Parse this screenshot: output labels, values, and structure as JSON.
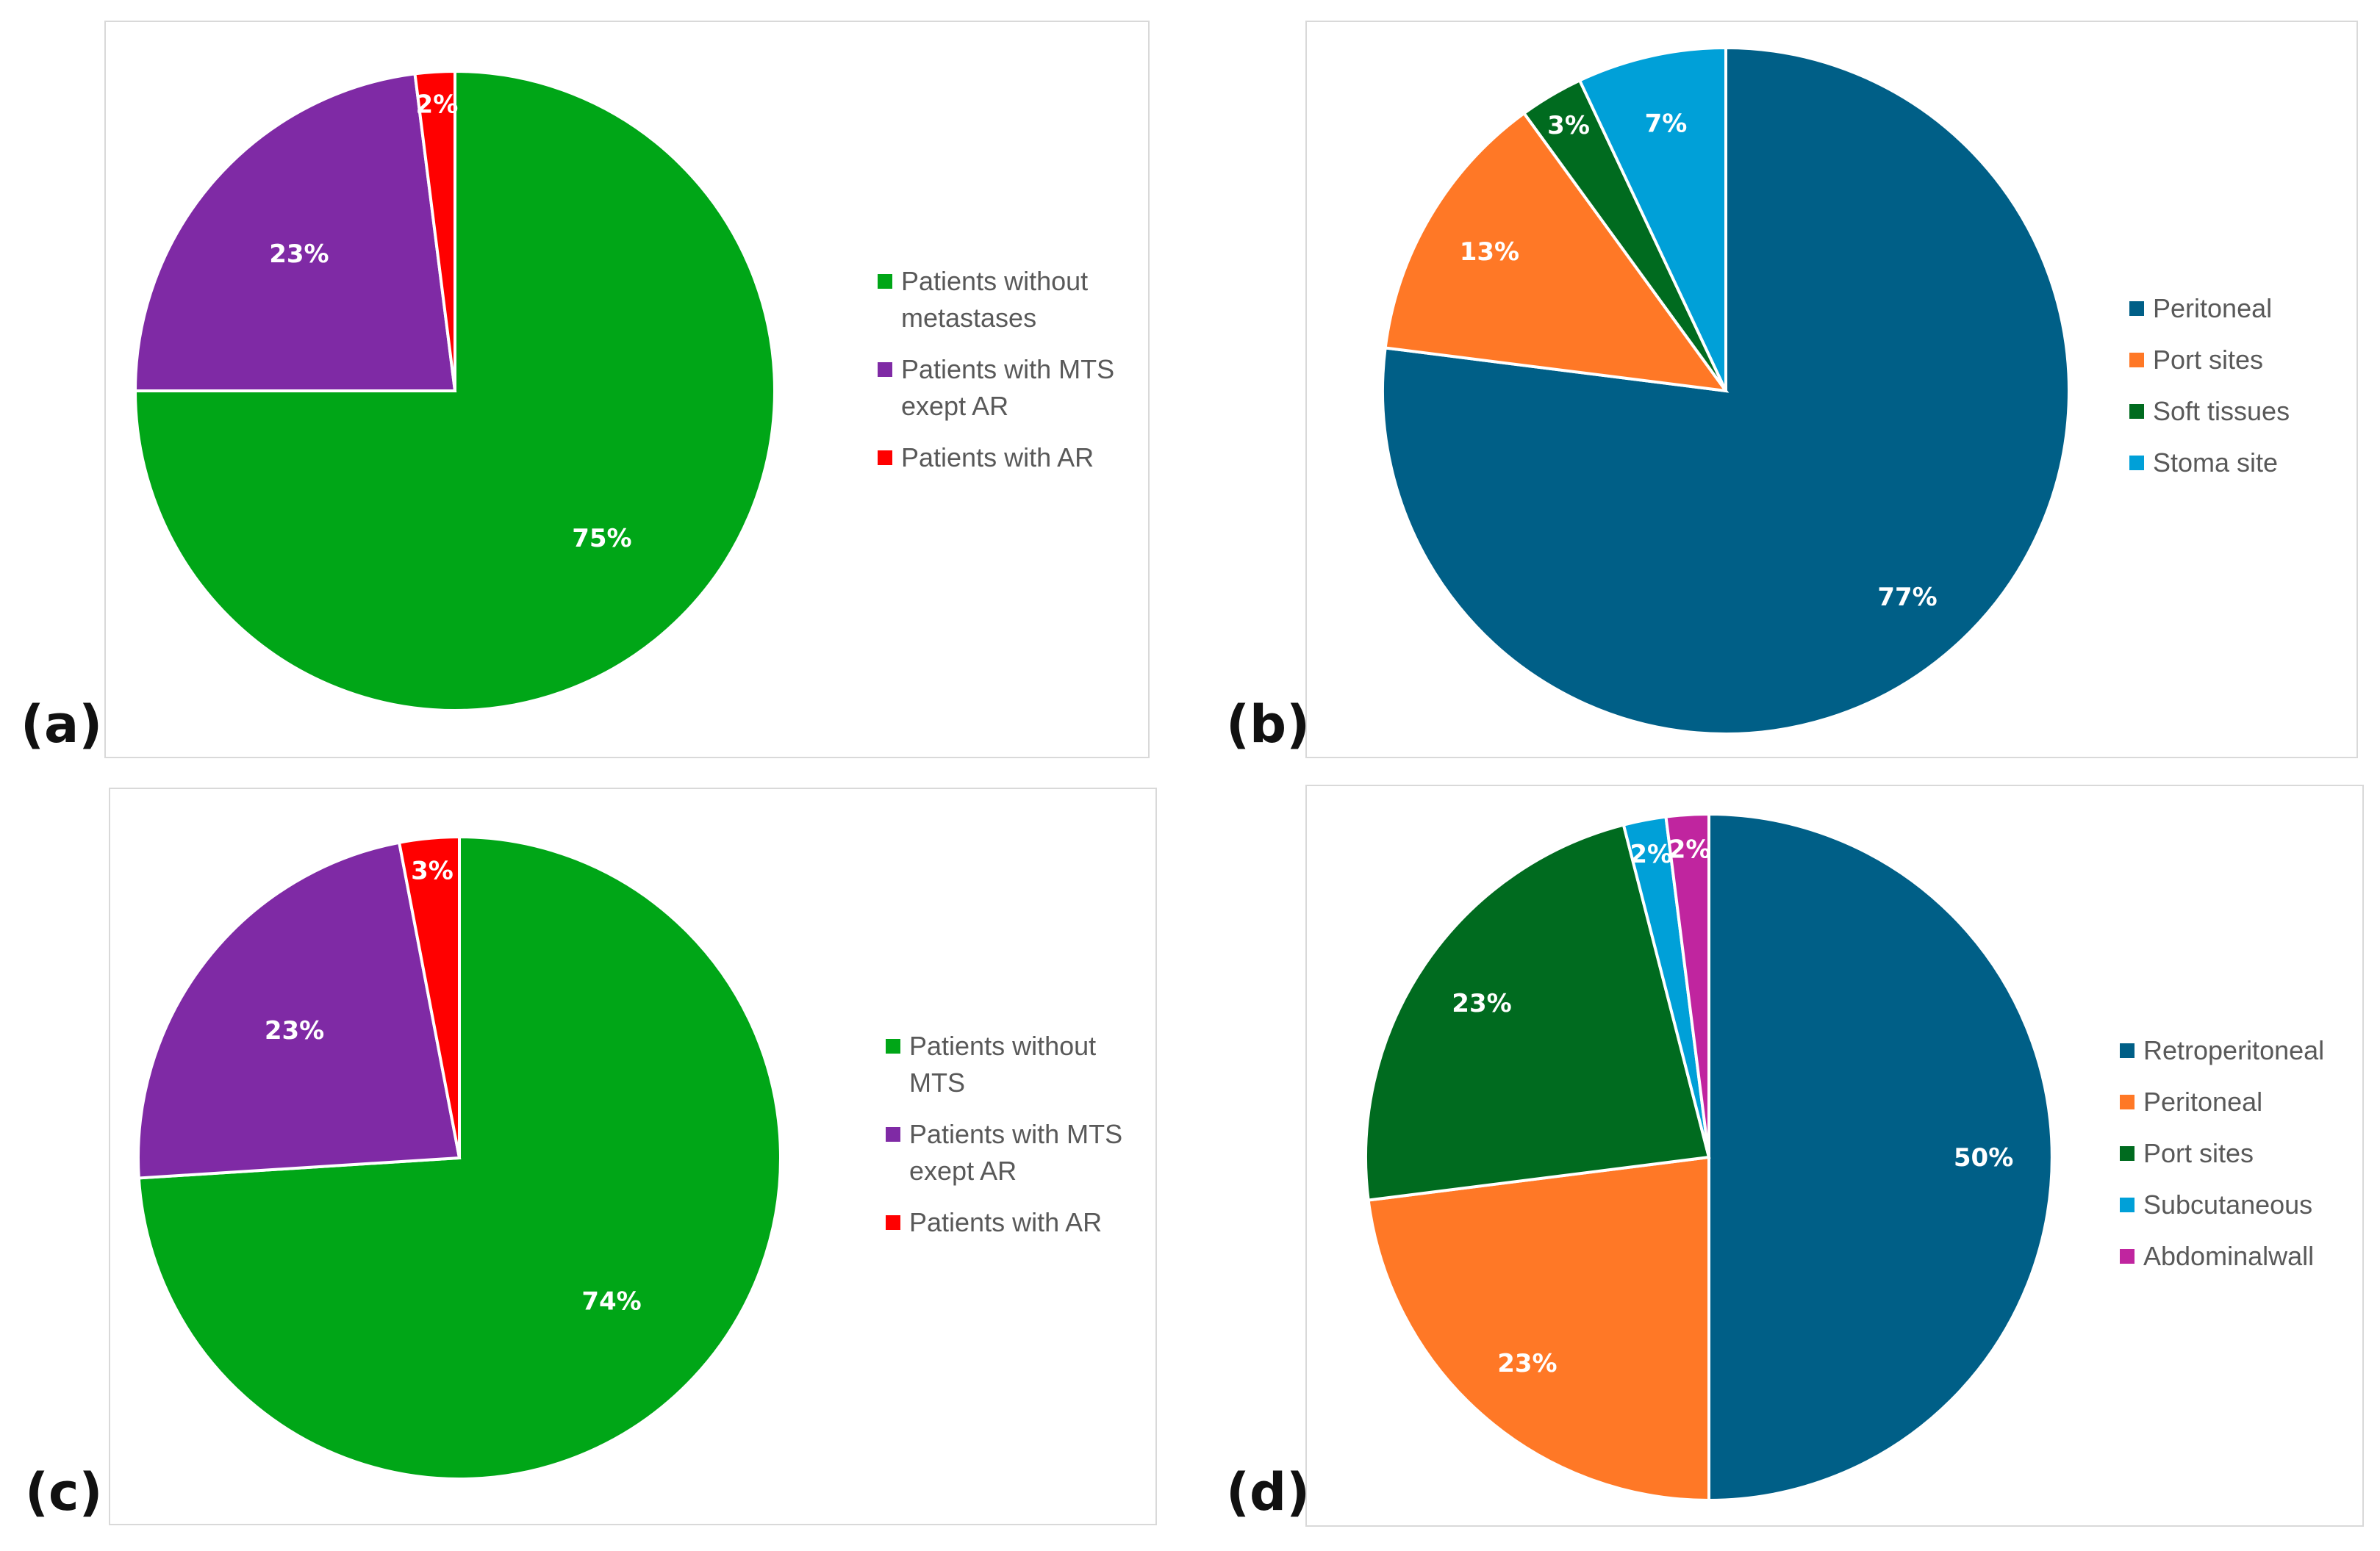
{
  "chart_data": [
    {
      "type": "pie",
      "panel_label": "(a)",
      "title": "",
      "slices": [
        {
          "label": "Patients without metastases",
          "legend": "Patients without\nmetastases",
          "value": 75,
          "display": "75%",
          "color": "#00a617"
        },
        {
          "label": "Patients with MTS exept AR",
          "legend": "Patients with MTS\nexept AR",
          "value": 23,
          "display": "23%",
          "color": "#7f2aa5"
        },
        {
          "label": "Patients with AR",
          "legend": "Patients with AR",
          "value": 2,
          "display": "2%",
          "color": "#ff0000"
        }
      ]
    },
    {
      "type": "pie",
      "panel_label": "(b)",
      "title": "",
      "slices": [
        {
          "label": "Peritoneal",
          "legend": "Peritoneal",
          "value": 77,
          "display": "77%",
          "color": "#005f87"
        },
        {
          "label": "Port sites",
          "legend": "Port sites",
          "value": 13,
          "display": "13%",
          "color": "#ff7826"
        },
        {
          "label": "Soft tissues",
          "legend": "Soft tissues",
          "value": 3,
          "display": "3%",
          "color": "#006b1f"
        },
        {
          "label": "Stoma site",
          "legend": "Stoma site",
          "value": 7,
          "display": "7%",
          "color": "#00a0d8"
        }
      ]
    },
    {
      "type": "pie",
      "panel_label": "(c)",
      "title": "",
      "slices": [
        {
          "label": "Patients without MTS",
          "legend": "Patients without\nMTS",
          "value": 74,
          "display": "74%",
          "color": "#00a617"
        },
        {
          "label": "Patients with MTS exept AR",
          "legend": "Patients with MTS\nexept AR",
          "value": 23,
          "display": "23%",
          "color": "#7f2aa5"
        },
        {
          "label": "Patients with AR",
          "legend": "Patients with AR",
          "value": 3,
          "display": "3%",
          "color": "#ff0000"
        }
      ]
    },
    {
      "type": "pie",
      "panel_label": "(d)",
      "title": "",
      "slices": [
        {
          "label": "Retroperitoneal",
          "legend": "Retroperitoneal",
          "value": 50,
          "display": "50%",
          "color": "#005f87"
        },
        {
          "label": "Peritoneal",
          "legend": "Peritoneal",
          "value": 23,
          "display": "23%",
          "color": "#ff7826"
        },
        {
          "label": "Port sites",
          "legend": "Port sites",
          "value": 23,
          "display": "23%",
          "color": "#006b1f"
        },
        {
          "label": "Subcutaneous",
          "legend": "Subcutaneous",
          "value": 2,
          "display": "2%",
          "color": "#00a0d8"
        },
        {
          "label": "Abdominal wall",
          "legend": "Abdominalwall",
          "value": 2,
          "display": "2%",
          "color": "#c0259f"
        }
      ]
    }
  ]
}
